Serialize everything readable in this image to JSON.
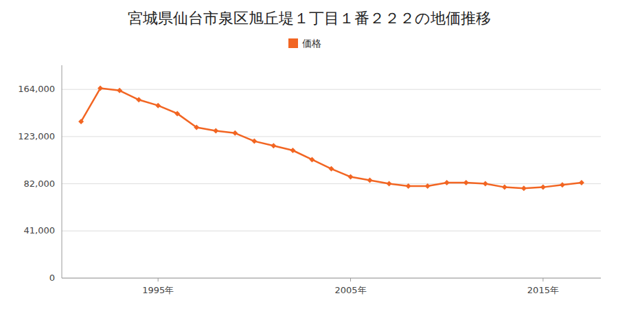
{
  "chart_data": {
    "type": "line",
    "title": "宮城県仙台市泉区旭丘堤１丁目１番２２２の地価推移",
    "x": [
      1991,
      1992,
      1993,
      1994,
      1995,
      1996,
      1997,
      1998,
      1999,
      2000,
      2001,
      2002,
      2003,
      2004,
      2005,
      2006,
      2007,
      2008,
      2009,
      2010,
      2011,
      2012,
      2013,
      2014,
      2015,
      2016,
      2017
    ],
    "series": [
      {
        "name": "価格",
        "color": "#f26522",
        "marker": "diamond",
        "values": [
          136000,
          165000,
          163000,
          155000,
          150000,
          143000,
          131000,
          128000,
          126000,
          119000,
          115000,
          111000,
          103000,
          95000,
          88000,
          85000,
          82000,
          80000,
          80000,
          83000,
          83000,
          82000,
          79000,
          78000,
          79000,
          81000,
          83000
        ]
      }
    ],
    "xlim": [
      1990,
      2018
    ],
    "xticks": [
      {
        "value": 1995,
        "label": "1995年"
      },
      {
        "value": 2005,
        "label": "2005年"
      },
      {
        "value": 2015,
        "label": "2015年"
      }
    ],
    "ylim": [
      0,
      185000
    ],
    "yticks": [
      0,
      {
        "value": 41000,
        "label": "41,000"
      },
      {
        "value": 82000,
        "label": "82,000"
      },
      {
        "value": 123000,
        "label": "123,000"
      },
      {
        "value": 164000,
        "label": "164,000"
      }
    ],
    "grid": true,
    "legend": "top"
  }
}
